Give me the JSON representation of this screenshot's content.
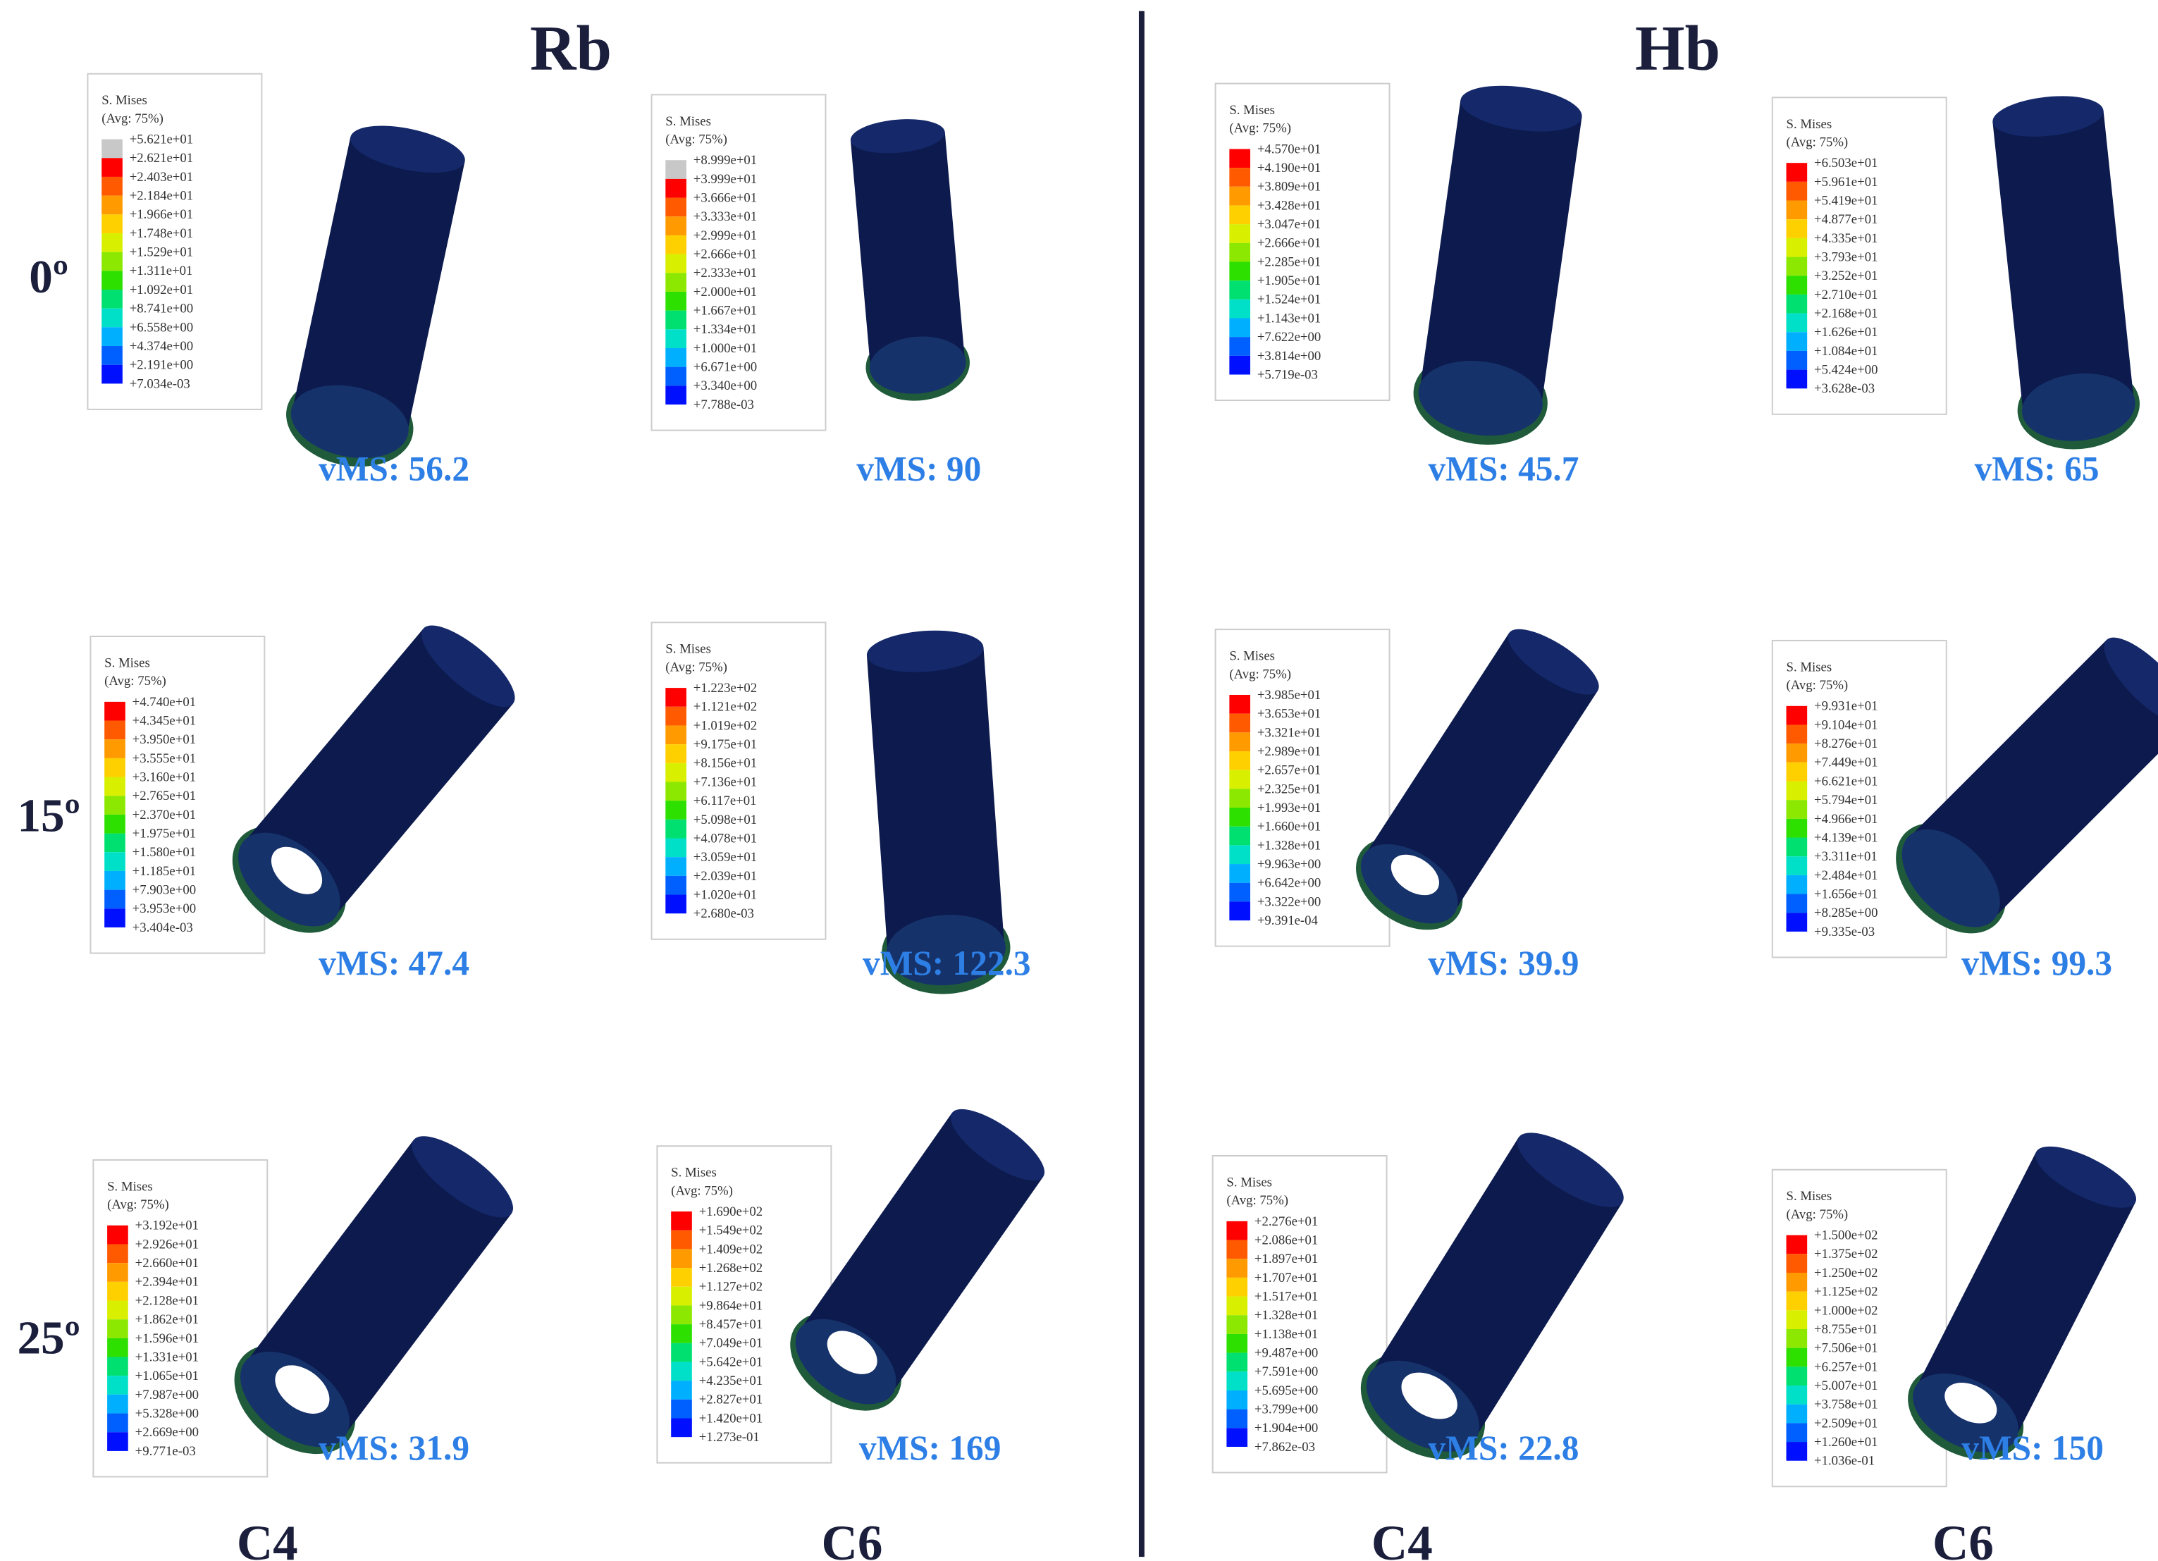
{
  "headers": [
    "Rb",
    "Hb"
  ],
  "rows": [
    "0º",
    "15º",
    "25º"
  ],
  "columns": [
    "C4",
    "C6",
    "C4",
    "C6"
  ],
  "panels": [
    {
      "legend_title": "S. Mises",
      "legend_subtitle": "(Avg: 75%)",
      "legend_values": [
        "+5.621e+01",
        "+2.621e+01",
        "+2.403e+01",
        "+2.184e+01",
        "+1.966e+01",
        "+1.748e+01",
        "+1.529e+01",
        "+1.311e+01",
        "+1.092e+01",
        "+8.741e+00",
        "+6.558e+00",
        "+4.374e+00",
        "+2.191e+00",
        "+7.034e-03"
      ],
      "label": "vMS: 56.2"
    },
    {
      "legend_title": "S. Mises",
      "legend_subtitle": "(Avg: 75%)",
      "legend_values": [
        "+8.999e+01",
        "+3.999e+01",
        "+3.666e+01",
        "+3.333e+01",
        "+2.999e+01",
        "+2.666e+01",
        "+2.333e+01",
        "+2.000e+01",
        "+1.667e+01",
        "+1.334e+01",
        "+1.000e+01",
        "+6.671e+00",
        "+3.340e+00",
        "+7.788e-03"
      ],
      "label": "vMS: 90"
    },
    {
      "legend_title": "S. Mises",
      "legend_subtitle": "(Avg: 75%)",
      "legend_values": [
        "+4.570e+01",
        "+4.190e+01",
        "+3.809e+01",
        "+3.428e+01",
        "+3.047e+01",
        "+2.666e+01",
        "+2.285e+01",
        "+1.905e+01",
        "+1.524e+01",
        "+1.143e+01",
        "+7.622e+00",
        "+3.814e+00",
        "+5.719e-03"
      ],
      "label": "vMS: 45.7"
    },
    {
      "legend_title": "S. Mises",
      "legend_subtitle": "(Avg: 75%)",
      "legend_values": [
        "+6.503e+01",
        "+5.961e+01",
        "+5.419e+01",
        "+4.877e+01",
        "+4.335e+01",
        "+3.793e+01",
        "+3.252e+01",
        "+2.710e+01",
        "+2.168e+01",
        "+1.626e+01",
        "+1.084e+01",
        "+5.424e+00",
        "+3.628e-03"
      ],
      "label": "vMS: 65"
    },
    {
      "legend_title": "S. Mises",
      "legend_subtitle": "(Avg: 75%)",
      "legend_values": [
        "+4.740e+01",
        "+4.345e+01",
        "+3.950e+01",
        "+3.555e+01",
        "+3.160e+01",
        "+2.765e+01",
        "+2.370e+01",
        "+1.975e+01",
        "+1.580e+01",
        "+1.185e+01",
        "+7.903e+00",
        "+3.953e+00",
        "+3.404e-03"
      ],
      "label": "vMS: 47.4"
    },
    {
      "legend_title": "S. Mises",
      "legend_subtitle": "(Avg: 75%)",
      "legend_values": [
        "+1.223e+02",
        "+1.121e+02",
        "+1.019e+02",
        "+9.175e+01",
        "+8.156e+01",
        "+7.136e+01",
        "+6.117e+01",
        "+5.098e+01",
        "+4.078e+01",
        "+3.059e+01",
        "+2.039e+01",
        "+1.020e+01",
        "+2.680e-03"
      ],
      "label": "vMS: 122.3"
    },
    {
      "legend_title": "S. Mises",
      "legend_subtitle": "(Avg: 75%)",
      "legend_values": [
        "+3.985e+01",
        "+3.653e+01",
        "+3.321e+01",
        "+2.989e+01",
        "+2.657e+01",
        "+2.325e+01",
        "+1.993e+01",
        "+1.660e+01",
        "+1.328e+01",
        "+9.963e+00",
        "+6.642e+00",
        "+3.322e+00",
        "+9.391e-04"
      ],
      "label": "vMS: 39.9"
    },
    {
      "legend_title": "S. Mises",
      "legend_subtitle": "(Avg: 75%)",
      "legend_values": [
        "+9.931e+01",
        "+9.104e+01",
        "+8.276e+01",
        "+7.449e+01",
        "+6.621e+01",
        "+5.794e+01",
        "+4.966e+01",
        "+4.139e+01",
        "+3.311e+01",
        "+2.484e+01",
        "+1.656e+01",
        "+8.285e+00",
        "+9.335e-03"
      ],
      "label": "vMS: 99.3"
    },
    {
      "legend_title": "S. Mises",
      "legend_subtitle": "(Avg: 75%)",
      "legend_values": [
        "+3.192e+01",
        "+2.926e+01",
        "+2.660e+01",
        "+2.394e+01",
        "+2.128e+01",
        "+1.862e+01",
        "+1.596e+01",
        "+1.331e+01",
        "+1.065e+01",
        "+7.987e+00",
        "+5.328e+00",
        "+2.669e+00",
        "+9.771e-03"
      ],
      "label": "vMS: 31.9"
    },
    {
      "legend_title": "S. Mises",
      "legend_subtitle": "(Avg: 75%)",
      "legend_values": [
        "+1.690e+02",
        "+1.549e+02",
        "+1.409e+02",
        "+1.268e+02",
        "+1.127e+02",
        "+9.864e+01",
        "+8.457e+01",
        "+7.049e+01",
        "+5.642e+01",
        "+4.235e+01",
        "+2.827e+01",
        "+1.420e+01",
        "+1.273e-01"
      ],
      "label": "vMS: 169"
    },
    {
      "legend_title": "S. Mises",
      "legend_subtitle": "(Avg: 75%)",
      "legend_values": [
        "+2.276e+01",
        "+2.086e+01",
        "+1.897e+01",
        "+1.707e+01",
        "+1.517e+01",
        "+1.328e+01",
        "+1.138e+01",
        "+9.487e+00",
        "+7.591e+00",
        "+5.695e+00",
        "+3.799e+00",
        "+1.904e+00",
        "+7.862e-03"
      ],
      "label": "vMS: 22.8"
    },
    {
      "legend_title": "S. Mises",
      "legend_subtitle": "(Avg: 75%)",
      "legend_values": [
        "+1.500e+02",
        "+1.375e+02",
        "+1.250e+02",
        "+1.125e+02",
        "+1.000e+02",
        "+8.755e+01",
        "+7.506e+01",
        "+6.257e+01",
        "+5.007e+01",
        "+3.758e+01",
        "+2.509e+01",
        "+1.260e+01",
        "+1.036e-01"
      ],
      "label": "vMS: 150"
    }
  ]
}
